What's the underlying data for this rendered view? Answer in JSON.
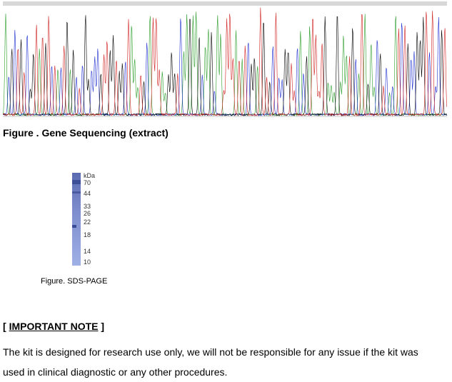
{
  "sequencing_figure": {
    "caption": "Figure . Gene Sequencing (extract)"
  },
  "gel": {
    "unit": "kDa",
    "markers": [
      "70",
      "44",
      "33",
      "26",
      "22",
      "18",
      "14",
      "10"
    ],
    "caption": "Figure. SDS-PAGE"
  },
  "note": {
    "open": "[",
    "title": "IMPORTANT NOTE",
    "close": "]",
    "text": "The kit is designed for research use only, we will not be responsible for any issue if the kit was used in clinical diagnostic or any other procedures."
  }
}
